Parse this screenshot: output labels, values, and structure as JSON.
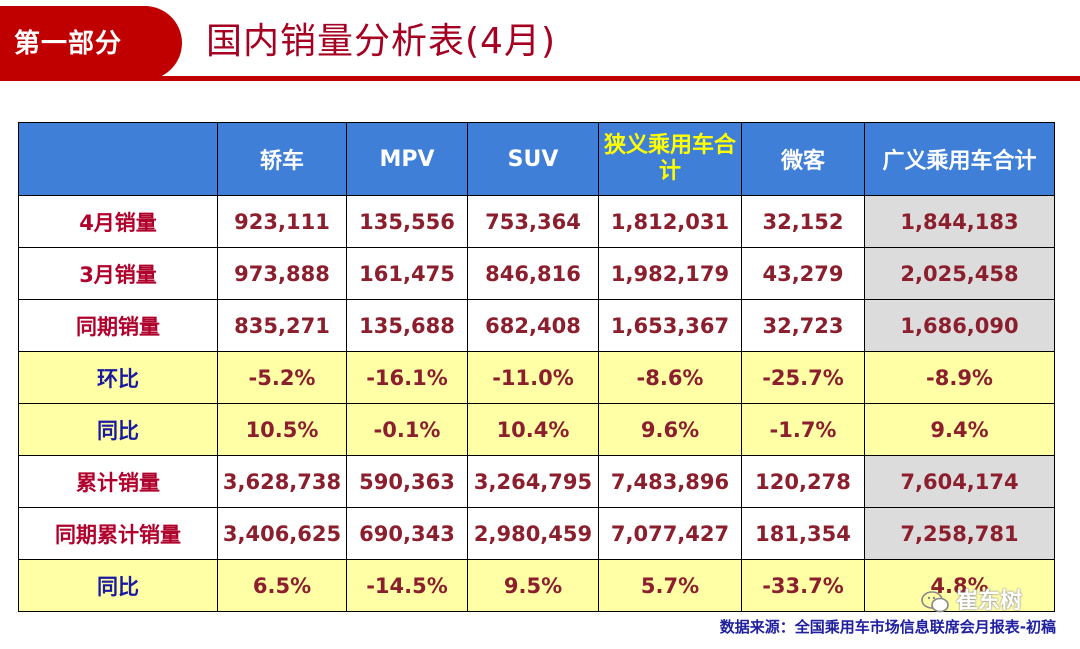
{
  "header": {
    "section_label": "第一部分",
    "title": "国内销量分析表(4月)"
  },
  "table": {
    "columns": [
      "",
      "轿车",
      "MPV",
      "SUV",
      "狭义乘用车合计",
      "微客",
      "广义乘用车合计"
    ],
    "rows": [
      {
        "label": "4月销量",
        "values": [
          "923,111",
          "135,556",
          "753,364",
          "1,812,031",
          "32,152",
          "1,844,183"
        ]
      },
      {
        "label": "3月销量",
        "values": [
          "973,888",
          "161,475",
          "846,816",
          "1,982,179",
          "43,279",
          "2,025,458"
        ]
      },
      {
        "label": "同期销量",
        "values": [
          "835,271",
          "135,688",
          "682,408",
          "1,653,367",
          "32,723",
          "1,686,090"
        ]
      },
      {
        "label": "环比",
        "values": [
          "-5.2%",
          "-16.1%",
          "-11.0%",
          "-8.6%",
          "-25.7%",
          "-8.9%"
        ]
      },
      {
        "label": "同比",
        "values": [
          "10.5%",
          "-0.1%",
          "10.4%",
          "9.6%",
          "-1.7%",
          "9.4%"
        ]
      },
      {
        "label": "累计销量",
        "values": [
          "3,628,738",
          "590,363",
          "3,264,795",
          "7,483,896",
          "120,278",
          "7,604,174"
        ]
      },
      {
        "label": "同期累计销量",
        "values": [
          "3,406,625",
          "690,343",
          "2,980,459",
          "7,077,427",
          "181,354",
          "7,258,781"
        ]
      },
      {
        "label": "同比",
        "values": [
          "6.5%",
          "-14.5%",
          "9.5%",
          "5.7%",
          "-33.7%",
          "4.8%"
        ]
      }
    ]
  },
  "source": "数据来源：全国乘用车市场信息联席会月报表-初稿",
  "watermark": "崔东树",
  "colors": {
    "brand_red": "#c00000",
    "header_blue": "#3f7fd8",
    "highlight_yellow": "#ffffa6",
    "total_gray": "#dcdcdc"
  }
}
